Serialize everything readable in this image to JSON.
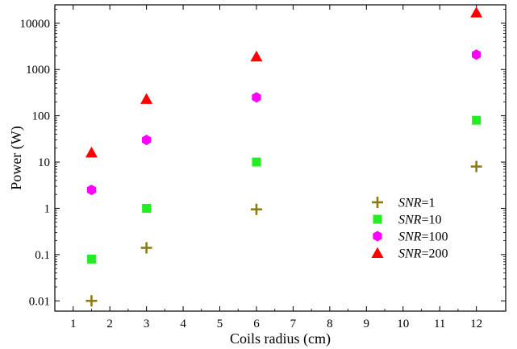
{
  "chart_data": {
    "type": "scatter",
    "xlabel": "Coils radius (cm)",
    "ylabel": "Power (W)",
    "xlim": [
      0.5,
      12.8
    ],
    "ylim": [
      0.006,
      25000
    ],
    "yscale": "log",
    "x_ticks": [
      1,
      2,
      3,
      4,
      5,
      6,
      7,
      8,
      9,
      10,
      11,
      12
    ],
    "y_ticks": [
      0.01,
      0.1,
      1,
      10,
      100,
      1000,
      10000
    ],
    "y_tick_labels": [
      "0.01",
      "0.1",
      "1",
      "10",
      "100",
      "1000",
      "10000"
    ],
    "grid": false,
    "legend_position": "center-right",
    "series": [
      {
        "name": "SNR=1",
        "name_italic": "SNR",
        "name_rest": "=1",
        "marker": "plus",
        "color": "#8b7d12",
        "x": [
          1.5,
          3,
          6,
          12
        ],
        "y": [
          0.01,
          0.14,
          0.95,
          8
        ]
      },
      {
        "name": "SNR=10",
        "name_italic": "SNR",
        "name_rest": "=10",
        "marker": "square",
        "color": "#22ee22",
        "x": [
          1.5,
          3,
          6,
          12
        ],
        "y": [
          0.08,
          1,
          10,
          80
        ]
      },
      {
        "name": "SNR=100",
        "name_italic": "SNR",
        "name_rest": "=100",
        "marker": "hexagon",
        "color": "#ff00ff",
        "x": [
          1.5,
          3,
          6,
          12
        ],
        "y": [
          2.5,
          30,
          250,
          2100
        ]
      },
      {
        "name": "SNR=200",
        "name_italic": "SNR",
        "name_rest": "=200",
        "marker": "triangle",
        "color": "#ff0000",
        "x": [
          1.5,
          3,
          6,
          12
        ],
        "y": [
          16,
          230,
          1900,
          17000
        ]
      }
    ]
  }
}
